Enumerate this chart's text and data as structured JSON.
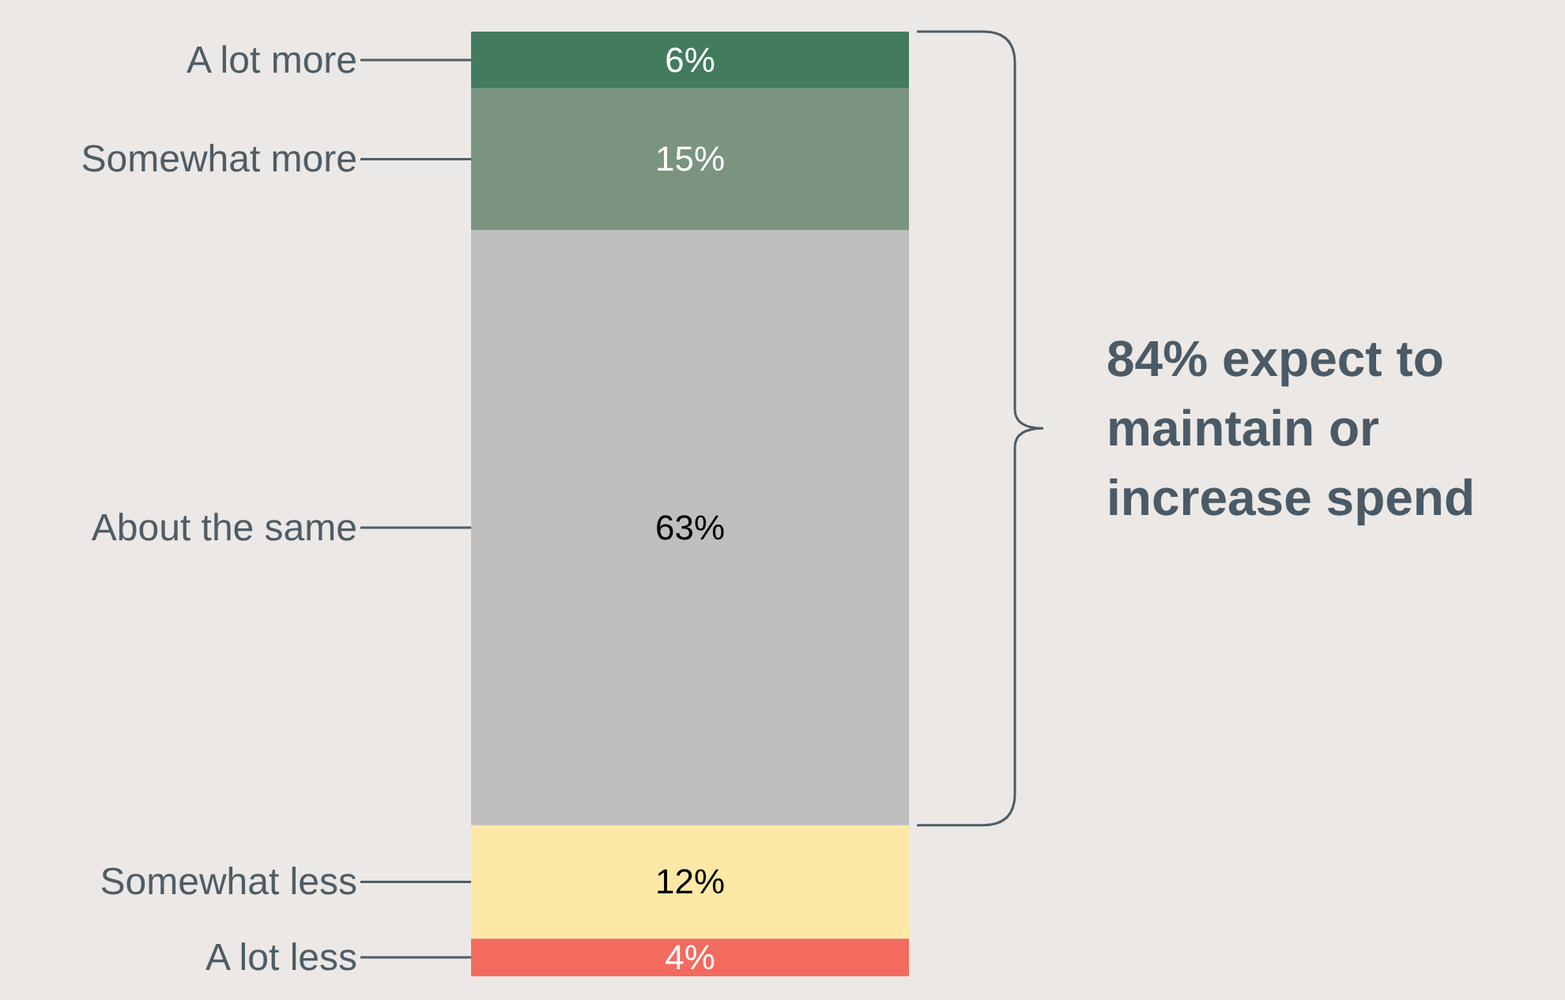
{
  "chart_data": {
    "type": "bar",
    "stacked": true,
    "categories": [
      null
    ],
    "tick_labels": false,
    "legend": false,
    "series": [
      {
        "name": "A lot less",
        "color": "#f26b5e",
        "values": [
          4
        ],
        "value_labels": [
          "4%"
        ]
      },
      {
        "name": "Somewhat less",
        "color": "#fde9a5",
        "values": [
          12
        ],
        "value_labels": [
          "12%"
        ]
      },
      {
        "name": "About the same",
        "color": "#bebebe",
        "values": [
          63
        ],
        "value_labels": [
          "63%"
        ]
      },
      {
        "name": "Somewhat more",
        "color": "#7a9480",
        "values": [
          15
        ],
        "value_labels": [
          "15%"
        ]
      },
      {
        "name": "A lot more",
        "color": "#427b5e",
        "values": [
          6
        ],
        "value_labels": [
          "6%"
        ]
      }
    ],
    "annotations": [
      "84% expect to maintain or increase spend"
    ]
  }
}
